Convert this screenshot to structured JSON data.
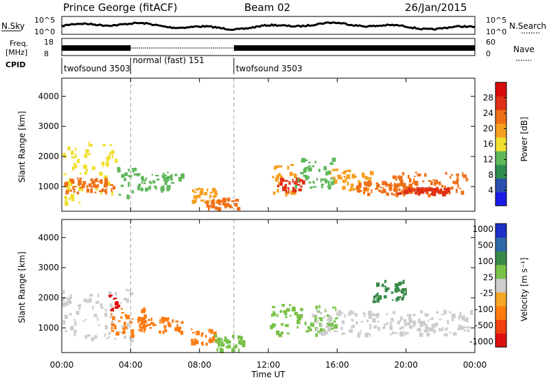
{
  "header": {
    "site": "Prince George (fitACF)",
    "beam": "Beam 02",
    "date": "26/Jan/2015"
  },
  "status": {
    "nsky_label": "N.Sky",
    "nsky_ticks": [
      "10^5",
      "10^0"
    ],
    "nsearch_label": "N.Search",
    "nsearch_ticks": [
      "10^5",
      "10^0"
    ],
    "freq_label_1": "Freq.",
    "freq_label_2": "[MHz]",
    "freq_ticks": [
      "18",
      "8"
    ],
    "nave_label": "Nave",
    "nave_ticks": [
      "60",
      "0"
    ],
    "cpid_label": "CPID",
    "cpid_segments": [
      {
        "label": "twofsound 3503",
        "start_hour": 0,
        "end_hour": 4
      },
      {
        "label": "normal (fast) 151",
        "start_hour": 4,
        "end_hour": 10
      },
      {
        "label": "twofsound 3503",
        "start_hour": 10,
        "end_hour": 24
      }
    ]
  },
  "x_axis": {
    "label": "Time UT",
    "ticks": [
      "00:00",
      "04:00",
      "08:00",
      "12:00",
      "16:00",
      "20:00",
      "00:00"
    ]
  },
  "colors": {
    "power": [
      "#1a1ae6",
      "#2a4fb0",
      "#2f8e50",
      "#5fb85a",
      "#f0e030",
      "#f7a020",
      "#f07018",
      "#e03015",
      "#d80c0c"
    ],
    "velocity": [
      "#1c2fc8",
      "#2f6aa8",
      "#3a8a4a",
      "#79c249",
      "#cdcdcd",
      "#f5a623",
      "#ff7b10",
      "#f04010",
      "#e01010"
    ]
  },
  "chart_data": [
    {
      "type": "heatmap",
      "title": "Power",
      "xlabel": "Time UT",
      "ylabel": "Slant Range [km]",
      "xlim": [
        0,
        24
      ],
      "ylim": [
        180,
        4600
      ],
      "yticks": [
        "1000",
        "2000",
        "3000",
        "4000"
      ],
      "colorbar_label": "Power [dB]",
      "colorbar_ticks": [
        "4",
        "8",
        "12",
        "16",
        "20",
        "24",
        "28"
      ],
      "colorbar_range": [
        0,
        32
      ],
      "bands": [
        {
          "t0": 0,
          "t1": 3.2,
          "r0": 500,
          "r1": 2500,
          "level": 16
        },
        {
          "t0": 0,
          "t1": 3,
          "r0": 800,
          "r1": 1300,
          "level": 22
        },
        {
          "t0": 3.2,
          "t1": 4.2,
          "r0": 700,
          "r1": 1700,
          "level": 14
        },
        {
          "t0": 4.3,
          "t1": 7,
          "r0": 950,
          "r1": 1500,
          "level": 12
        },
        {
          "t0": 7.5,
          "t1": 9,
          "r0": 500,
          "r1": 1000,
          "level": 18
        },
        {
          "t0": 8.3,
          "t1": 10.2,
          "r0": 300,
          "r1": 650,
          "level": 24
        },
        {
          "t0": 12.2,
          "t1": 13.5,
          "r0": 800,
          "r1": 1800,
          "level": 18
        },
        {
          "t0": 12.5,
          "t1": 14,
          "r0": 900,
          "r1": 1300,
          "level": 26
        },
        {
          "t0": 13.5,
          "t1": 16,
          "r0": 1000,
          "r1": 2000,
          "level": 14
        },
        {
          "t0": 15.5,
          "t1": 18,
          "r0": 900,
          "r1": 1600,
          "level": 20
        },
        {
          "t0": 17,
          "t1": 20,
          "r0": 800,
          "r1": 1200,
          "level": 24
        },
        {
          "t0": 19,
          "t1": 23.5,
          "r0": 750,
          "r1": 1500,
          "level": 22
        },
        {
          "t0": 19.5,
          "t1": 22.5,
          "r0": 800,
          "r1": 1000,
          "level": 28
        }
      ]
    },
    {
      "type": "heatmap",
      "title": "Velocity",
      "xlabel": "Time UT",
      "ylabel": "Slant Range [km]",
      "xlim": [
        0,
        24
      ],
      "ylim": [
        180,
        4600
      ],
      "yticks": [
        "1000",
        "2000",
        "3000",
        "4000"
      ],
      "colorbar_label": "Velocity [m s⁻¹]",
      "colorbar_ticks": [
        "1000",
        "500",
        "100",
        "25",
        "-25",
        "-100",
        "-500",
        "-1000"
      ],
      "bands": [
        {
          "t0": 0,
          "t1": 4,
          "r0": 600,
          "r1": 2300,
          "level": "gray"
        },
        {
          "t0": 2.6,
          "t1": 3.2,
          "r0": 1600,
          "r1": 2200,
          "level": "red"
        },
        {
          "t0": 2.8,
          "t1": 4.8,
          "r0": 800,
          "r1": 1700,
          "level": "orange"
        },
        {
          "t0": 4.5,
          "t1": 7,
          "r0": 900,
          "r1": 1400,
          "level": "orange"
        },
        {
          "t0": 7.5,
          "t1": 9,
          "r0": 500,
          "r1": 1000,
          "level": "orange"
        },
        {
          "t0": 8.5,
          "t1": 10.5,
          "r0": 300,
          "r1": 800,
          "level": "green"
        },
        {
          "t0": 12,
          "t1": 16,
          "r0": 800,
          "r1": 1800,
          "level": "green"
        },
        {
          "t0": 14.5,
          "t1": 23.8,
          "r0": 800,
          "r1": 1600,
          "level": "gray"
        },
        {
          "t0": 18,
          "t1": 20,
          "r0": 1900,
          "r1": 2600,
          "level": "darkgreen"
        }
      ]
    }
  ]
}
